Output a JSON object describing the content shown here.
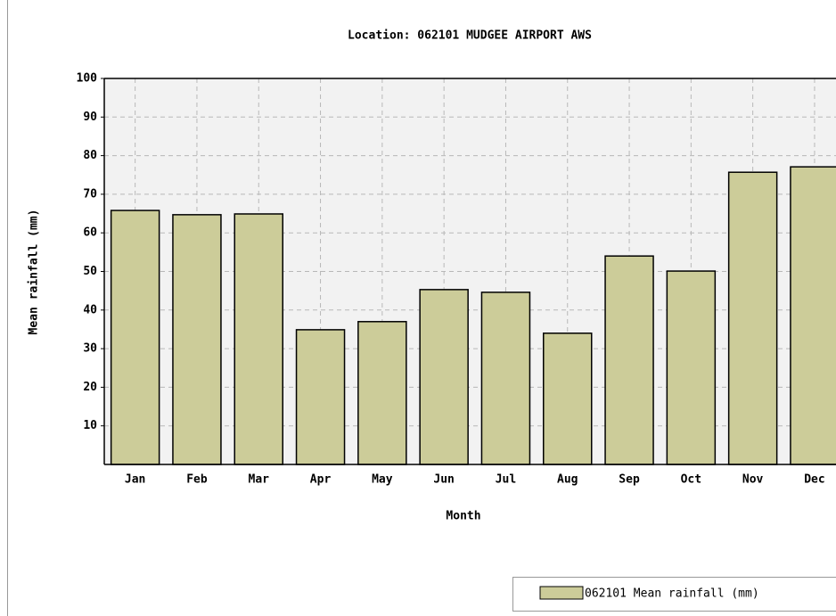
{
  "chart_data": {
    "type": "bar",
    "title": "Location: 062101 MUDGEE AIRPORT AWS",
    "x_label": "Month",
    "y_label": "Mean rainfall (mm)",
    "categories": [
      "Jan",
      "Feb",
      "Mar",
      "Apr",
      "May",
      "Jun",
      "Jul",
      "Aug",
      "Sep",
      "Oct",
      "Nov",
      "Dec"
    ],
    "series": [
      {
        "name": "062101 Mean rainfall (mm)",
        "color": "#cccc99",
        "values": [
          65.8,
          64.7,
          64.9,
          34.9,
          37.0,
          45.3,
          44.6,
          34.0,
          54.0,
          50.1,
          75.7,
          77.1
        ]
      }
    ],
    "ylim": [
      0,
      100
    ],
    "yticks": [
      10,
      20,
      30,
      40,
      50,
      60,
      70,
      80,
      90,
      100
    ],
    "grid": true
  }
}
